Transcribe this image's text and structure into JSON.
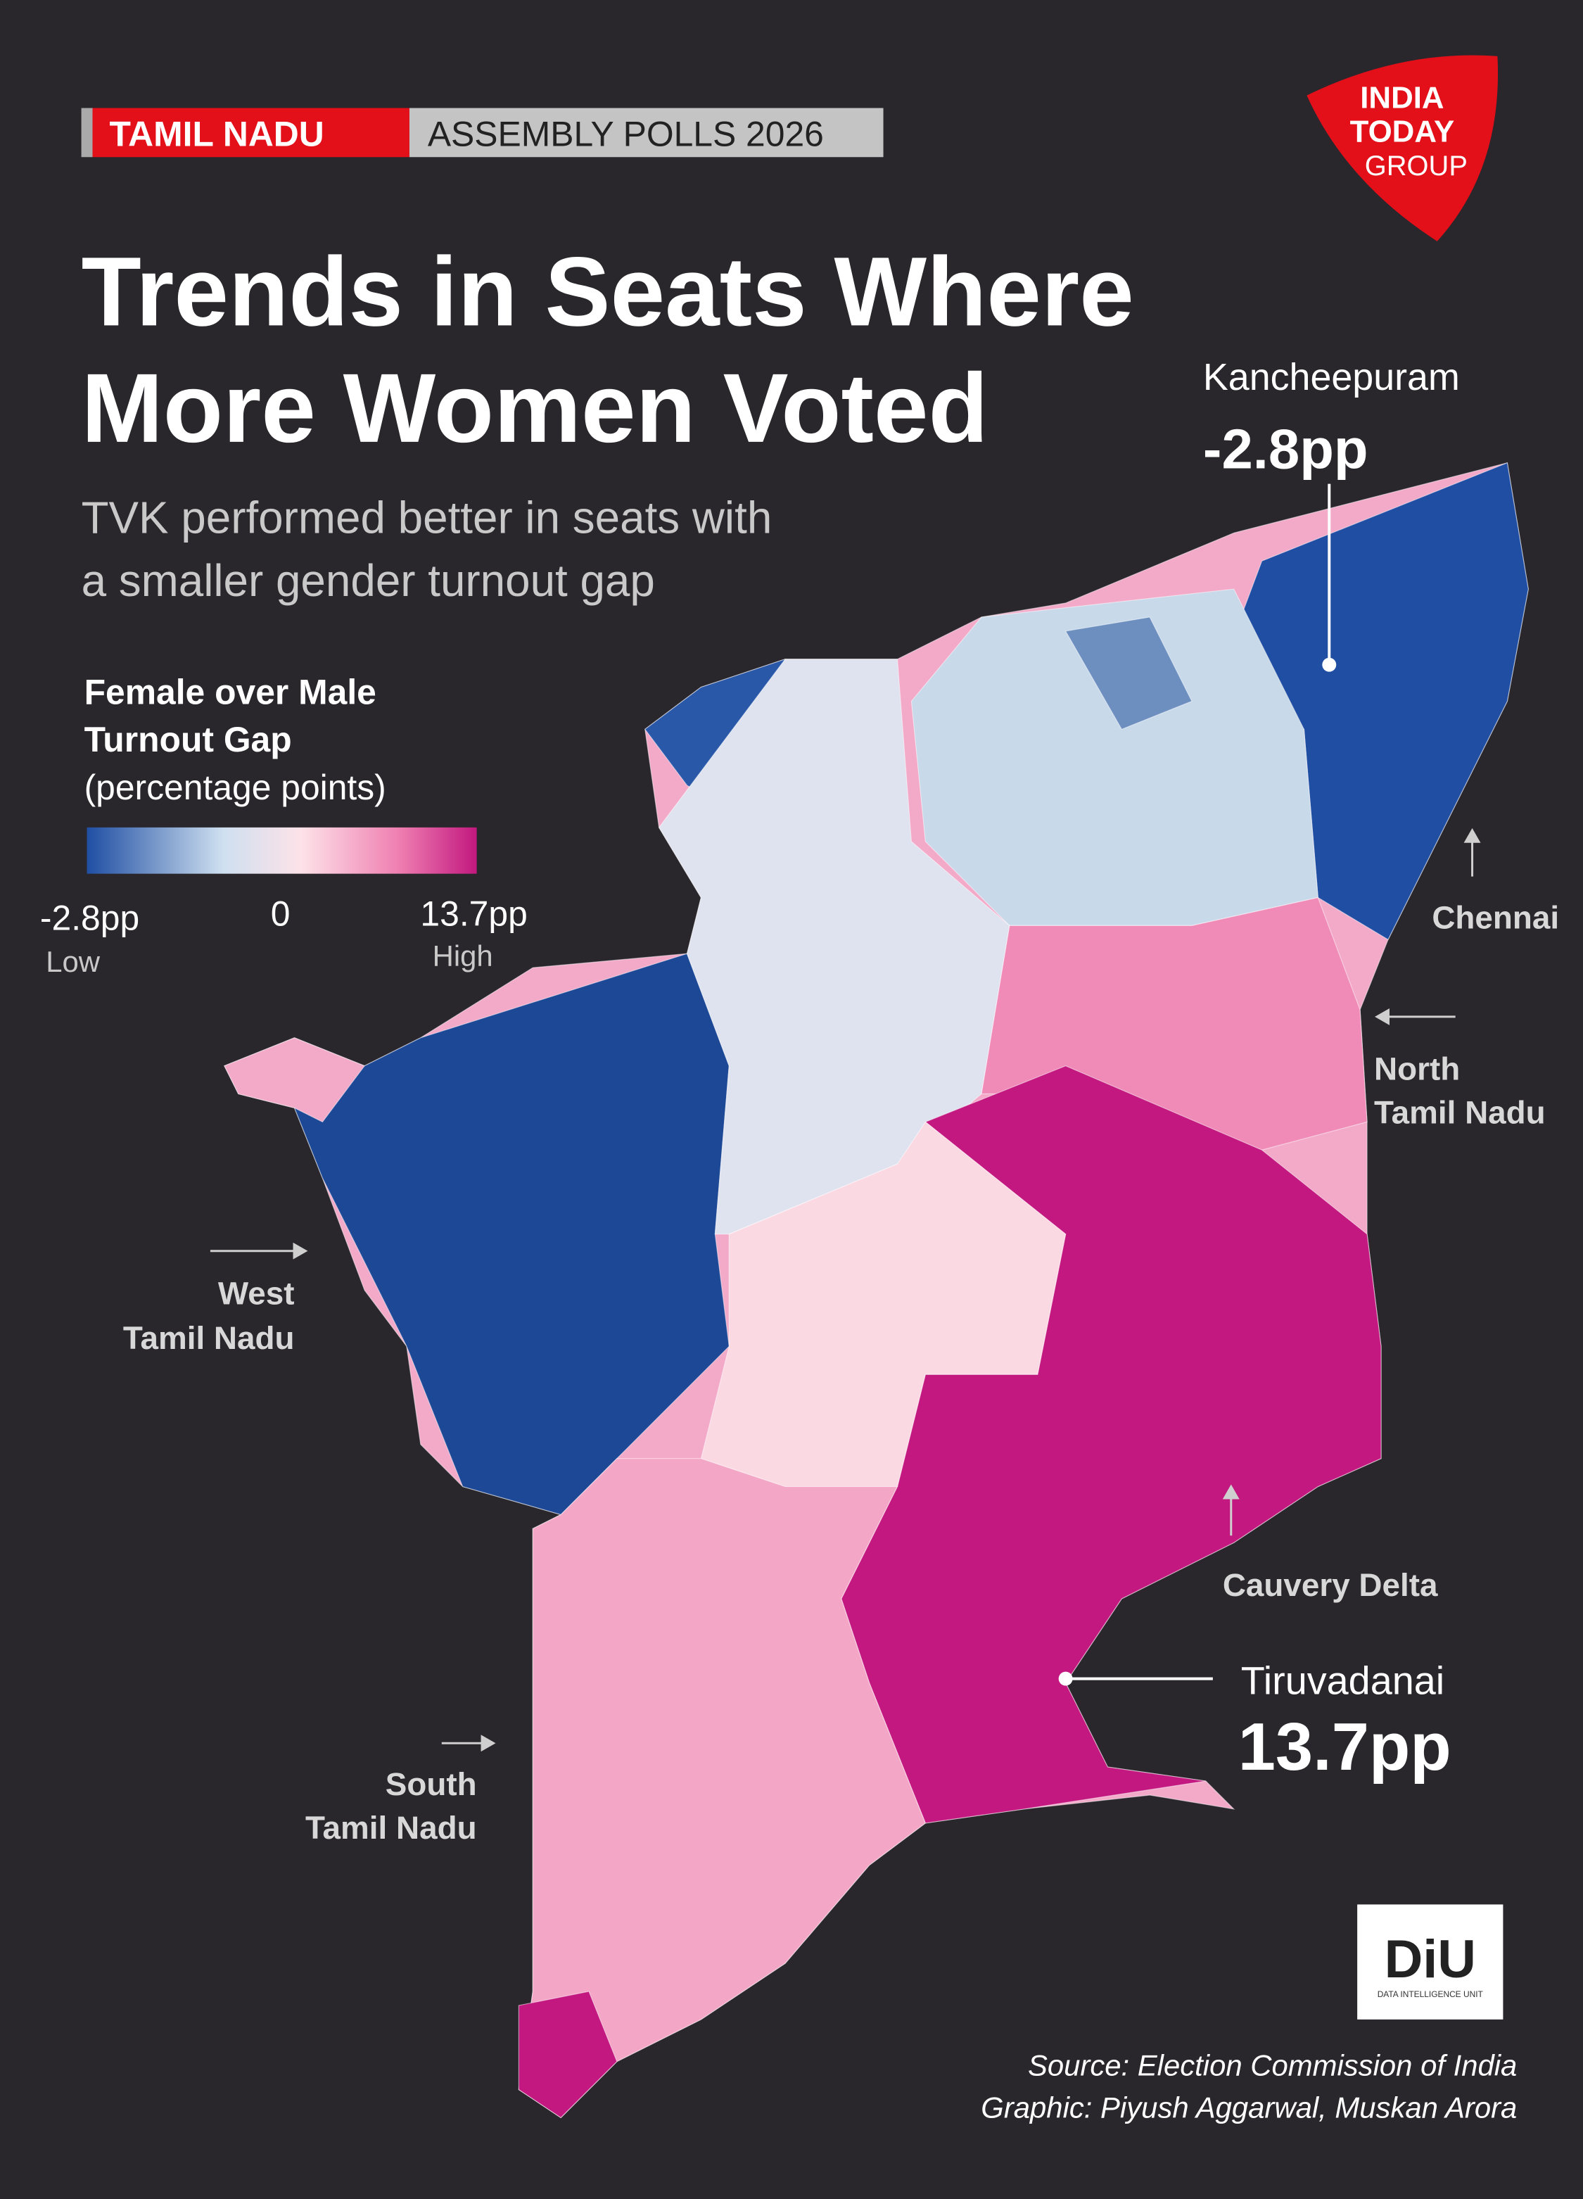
{
  "header": {
    "badge": "TAMIL NADU",
    "tag": "ASSEMBLY POLLS 2026"
  },
  "logo": {
    "lines": [
      "INDIA",
      "TODAY",
      "GROUP"
    ]
  },
  "title": {
    "lines": [
      "Trends in Seats Where",
      "More Women Voted"
    ]
  },
  "subtitle": {
    "lines": [
      "TVK performed better in seats with",
      "a smaller gender turnout gap"
    ]
  },
  "legend": {
    "title_lines": [
      "Female over Male",
      "Turnout Gap"
    ],
    "unit": "(percentage points)",
    "min_label": "-2.8pp",
    "mid_label": "0",
    "max_label": "13.7pp",
    "low": "Low",
    "high": "High"
  },
  "annotations": [
    {
      "name": "Kancheepuram",
      "value": "-2.8pp"
    },
    {
      "name": "Tiruvadanai",
      "value": "13.7pp"
    }
  ],
  "regions": {
    "chennai": "Chennai",
    "north": [
      "North",
      "Tamil Nadu"
    ],
    "west": [
      "West",
      "Tamil Nadu"
    ],
    "cauvery": "Cauvery Delta",
    "south": [
      "South",
      "Tamil Nadu"
    ]
  },
  "diu": {
    "mark": "DiU",
    "name": "DATA INTELLIGENCE UNIT"
  },
  "credits": {
    "source": "Source: Election Commission of India",
    "graphic": "Graphic: Piyush Aggarwal, Muskan Arora"
  }
}
